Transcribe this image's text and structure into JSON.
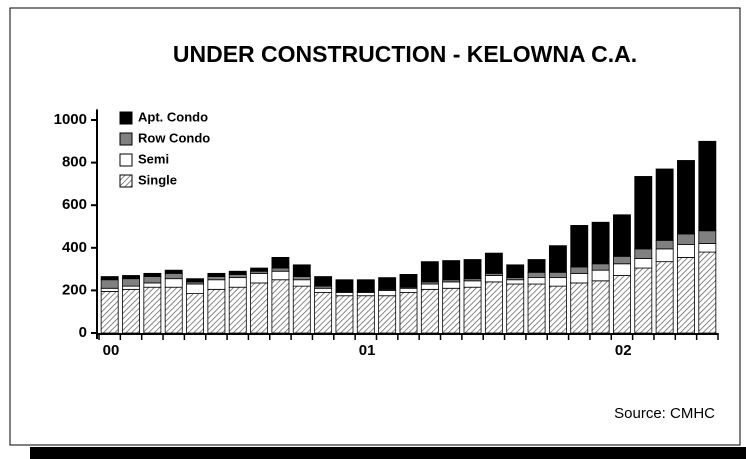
{
  "chart_data": {
    "type": "stacked_bar",
    "title": "UNDER CONSTRUCTION - KELOWNA C.A.",
    "source": "Source: CMHC",
    "categories": [
      "00",
      null,
      null,
      null,
      null,
      null,
      null,
      null,
      null,
      null,
      null,
      null,
      "01",
      null,
      null,
      null,
      null,
      null,
      null,
      null,
      null,
      null,
      null,
      null,
      "02",
      null,
      null,
      null,
      null
    ],
    "series": [
      {
        "name": "Single",
        "color": "#ffffff",
        "pattern": "hatch",
        "values": [
          195,
          205,
          215,
          215,
          185,
          205,
          215,
          235,
          250,
          220,
          190,
          175,
          175,
          175,
          190,
          205,
          210,
          215,
          240,
          230,
          230,
          220,
          235,
          245,
          270,
          305,
          335,
          355,
          380
        ]
      },
      {
        "name": "Semi",
        "color": "#ffffff",
        "values": [
          15,
          15,
          20,
          40,
          45,
          45,
          45,
          45,
          40,
          30,
          20,
          15,
          15,
          25,
          20,
          25,
          30,
          30,
          30,
          20,
          30,
          40,
          45,
          50,
          55,
          45,
          60,
          60,
          40
        ]
      },
      {
        "name": "Row Condo",
        "color": "#808080",
        "values": [
          40,
          35,
          30,
          25,
          10,
          15,
          15,
          10,
          15,
          15,
          10,
          5,
          5,
          5,
          5,
          10,
          10,
          10,
          10,
          10,
          25,
          25,
          30,
          30,
          35,
          45,
          40,
          50,
          60
        ]
      },
      {
        "name": "Apt. Condo",
        "color": "#000000",
        "values": [
          15,
          15,
          15,
          15,
          15,
          15,
          15,
          15,
          50,
          55,
          45,
          55,
          55,
          55,
          60,
          95,
          90,
          90,
          95,
          60,
          60,
          125,
          195,
          195,
          195,
          340,
          335,
          345,
          420
        ]
      }
    ],
    "ylim": [
      0,
      1050
    ],
    "yticks": [
      0,
      200,
      400,
      600,
      800,
      1000
    ],
    "legend": "upper left",
    "grid": false
  }
}
